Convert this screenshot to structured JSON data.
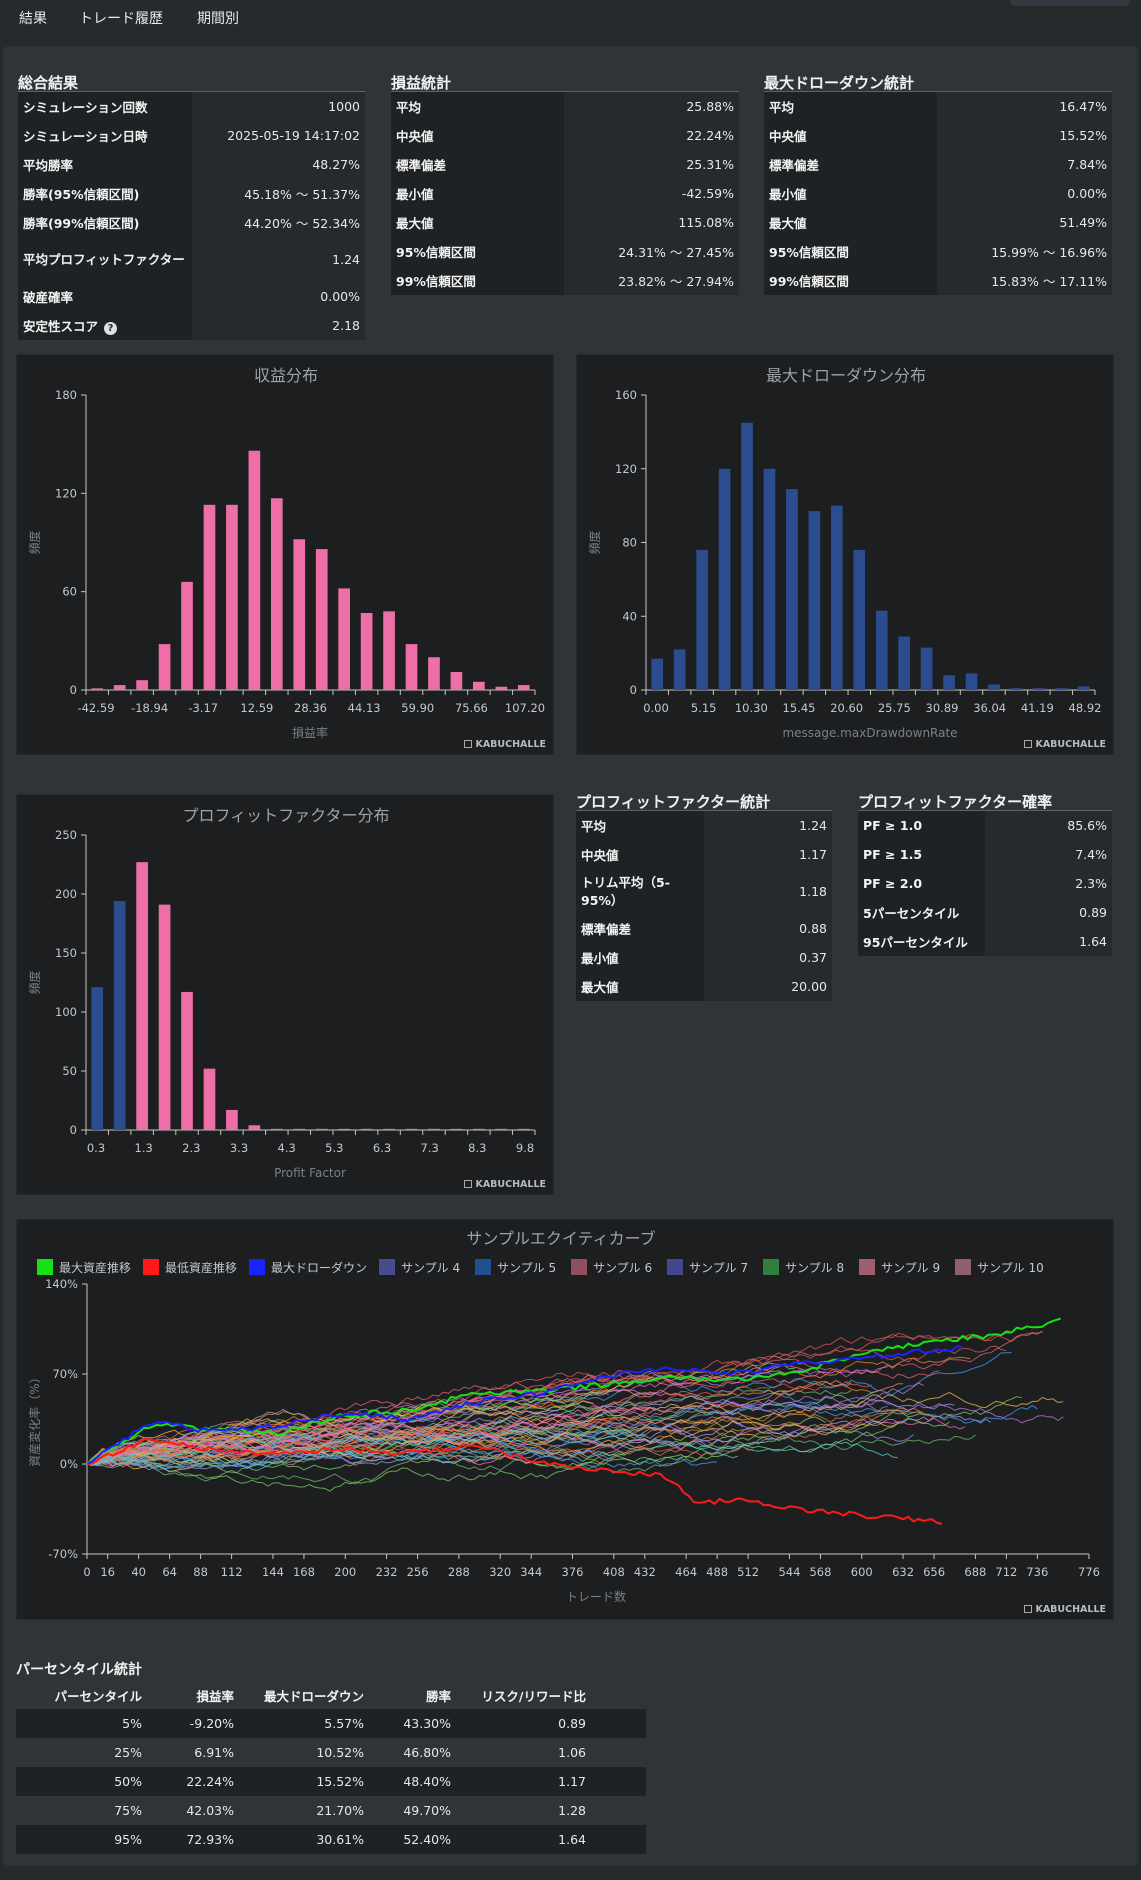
{
  "tabs": [
    "結果",
    "トレード履歴",
    "期間別"
  ],
  "summary": {
    "title": "総合結果",
    "rows": [
      {
        "k": "シミュレーション回数",
        "v": "1000"
      },
      {
        "k": "シミュレーション日時",
        "v": "2025-05-19 14:17:02"
      },
      {
        "k": "平均勝率",
        "v": "48.27%"
      },
      {
        "k": "勝率(95%信頼区間)",
        "v": "45.18% 〜 51.37%"
      },
      {
        "k": "勝率(99%信頼区間)",
        "v": "44.20% 〜 52.34%"
      },
      {
        "k": "平均プロフィットファクター",
        "v": "1.24"
      },
      {
        "k": "破産確率",
        "v": "0.00%"
      },
      {
        "k": "安定性スコア",
        "v": "2.18"
      }
    ]
  },
  "pl_stats": {
    "title": "損益統計",
    "rows": [
      {
        "k": "平均",
        "v": "25.88%"
      },
      {
        "k": "中央値",
        "v": "22.24%"
      },
      {
        "k": "標準偏差",
        "v": "25.31%"
      },
      {
        "k": "最小値",
        "v": "-42.59%"
      },
      {
        "k": "最大値",
        "v": "115.08%"
      },
      {
        "k": "95%信頼区間",
        "v": "24.31% 〜 27.45%"
      },
      {
        "k": "99%信頼区間",
        "v": "23.82% 〜 27.94%"
      }
    ]
  },
  "dd_stats": {
    "title": "最大ドローダウン統計",
    "rows": [
      {
        "k": "平均",
        "v": "16.47%"
      },
      {
        "k": "中央値",
        "v": "15.52%"
      },
      {
        "k": "標準偏差",
        "v": "7.84%"
      },
      {
        "k": "最小値",
        "v": "0.00%"
      },
      {
        "k": "最大値",
        "v": "51.49%"
      },
      {
        "k": "95%信頼区間",
        "v": "15.99% 〜 16.96%"
      },
      {
        "k": "99%信頼区間",
        "v": "15.83% 〜 17.11%"
      }
    ]
  },
  "pf_stats": {
    "title": "プロフィットファクター統計",
    "rows": [
      {
        "k": "平均",
        "v": "1.24"
      },
      {
        "k": "中央値",
        "v": "1.17"
      },
      {
        "k": "トリム平均（5-95%）",
        "v": "1.18"
      },
      {
        "k": "標準偏差",
        "v": "0.88"
      },
      {
        "k": "最小値",
        "v": "0.37"
      },
      {
        "k": "最大値",
        "v": "20.00"
      }
    ]
  },
  "pf_prob": {
    "title": "プロフィットファクター確率",
    "rows": [
      {
        "k": "PF ≥ 1.0",
        "v": "85.6%"
      },
      {
        "k": "PF ≥ 1.5",
        "v": "7.4%"
      },
      {
        "k": "PF ≥ 2.0",
        "v": "2.3%"
      },
      {
        "k": "5パーセンタイル",
        "v": "0.89"
      },
      {
        "k": "95パーセンタイル",
        "v": "1.64"
      }
    ]
  },
  "brand": "KABUCHALLE",
  "percentile": {
    "title": "パーセンタイル統計",
    "headers": [
      "パーセンタイル",
      "損益率",
      "最大ドローダウン",
      "勝率",
      "リスク/リワード比"
    ],
    "rows": [
      [
        "5%",
        "-9.20%",
        "5.57%",
        "43.30%",
        "0.89"
      ],
      [
        "25%",
        "6.91%",
        "10.52%",
        "46.80%",
        "1.06"
      ],
      [
        "50%",
        "22.24%",
        "15.52%",
        "48.40%",
        "1.17"
      ],
      [
        "75%",
        "42.03%",
        "21.70%",
        "49.70%",
        "1.28"
      ],
      [
        "95%",
        "72.93%",
        "30.61%",
        "52.40%",
        "1.64"
      ]
    ]
  },
  "chart_data": [
    {
      "type": "bar",
      "title": "収益分布",
      "xlabel": "損益率",
      "ylabel": "頻度",
      "ylim": [
        0,
        180
      ],
      "yticks": [
        0,
        60,
        120,
        180
      ],
      "xtick_labels": [
        "-42.59",
        "-18.94",
        "-3.17",
        "12.59",
        "28.36",
        "44.13",
        "59.90",
        "75.66",
        "107.20"
      ],
      "values": [
        1,
        3,
        6,
        28,
        66,
        113,
        113,
        146,
        117,
        92,
        86,
        62,
        47,
        48,
        28,
        20,
        11,
        5,
        2,
        3
      ],
      "color": "#ee6fa8"
    },
    {
      "type": "bar",
      "title": "最大ドローダウン分布",
      "xlabel": "message.maxDrawdownRate",
      "ylabel": "頻度",
      "ylim": [
        0,
        160
      ],
      "yticks": [
        0,
        40,
        80,
        120,
        160
      ],
      "xtick_labels": [
        "0.00",
        "5.15",
        "10.30",
        "15.45",
        "20.60",
        "25.75",
        "30.89",
        "36.04",
        "41.19",
        "48.92"
      ],
      "values": [
        17,
        22,
        76,
        120,
        145,
        120,
        109,
        97,
        100,
        76,
        43,
        29,
        23,
        8,
        9,
        3,
        1,
        1,
        1,
        2
      ],
      "color": "#2b4d8f"
    },
    {
      "type": "bar",
      "title": "プロフィットファクター分布",
      "xlabel": "Profit Factor",
      "ylabel": "頻度",
      "ylim": [
        0,
        250
      ],
      "yticks": [
        0,
        50,
        100,
        150,
        200,
        250
      ],
      "xtick_labels": [
        "0.3",
        "1.3",
        "2.3",
        "3.3",
        "4.3",
        "5.3",
        "6.3",
        "7.3",
        "8.3",
        "9.8"
      ],
      "values": [
        121,
        194,
        227,
        191,
        117,
        52,
        17,
        4,
        1,
        1,
        1,
        1,
        1,
        1,
        1,
        1,
        1,
        1,
        1,
        1
      ],
      "colors": [
        "#2b4d8f",
        "#2b4d8f",
        "#ee6fa8",
        "#ee6fa8",
        "#ee6fa8",
        "#ee6fa8",
        "#ee6fa8",
        "#ee6fa8",
        "#ee6fa8",
        "#ee6fa8",
        "#ee6fa8",
        "#ee6fa8",
        "#ee6fa8",
        "#ee6fa8",
        "#ee6fa8",
        "#ee6fa8",
        "#ee6fa8",
        "#ee6fa8",
        "#ee6fa8",
        "#ee6fa8"
      ]
    },
    {
      "type": "line",
      "title": "サンプルエクイティカーブ",
      "xlabel": "トレード数",
      "ylabel": "資産変化率（%）",
      "xlim": [
        0,
        776
      ],
      "ylim": [
        -70,
        140
      ],
      "yticks": [
        -70,
        0,
        70,
        140
      ],
      "ytick_suffix": "%",
      "xticks": [
        0,
        16,
        40,
        64,
        88,
        112,
        144,
        168,
        200,
        232,
        256,
        288,
        320,
        344,
        376,
        408,
        432,
        464,
        488,
        512,
        544,
        568,
        600,
        632,
        656,
        688,
        712,
        736,
        776
      ],
      "series": [
        {
          "name": "最大資産推移",
          "color": "#16e016",
          "x": [
            0,
            50,
            100,
            150,
            200,
            250,
            300,
            350,
            400,
            450,
            500,
            550,
            600,
            650,
            700,
            750,
            757
          ],
          "y": [
            0,
            30,
            27,
            24,
            38,
            42,
            55,
            56,
            62,
            67,
            65,
            72,
            85,
            95,
            100,
            110,
            114
          ]
        },
        {
          "name": "最低資産推移",
          "color": "#ff1a1a",
          "x": [
            0,
            50,
            100,
            150,
            200,
            250,
            300,
            350,
            400,
            450,
            470,
            500,
            550,
            600,
            650,
            662
          ],
          "y": [
            0,
            20,
            10,
            8,
            12,
            8,
            15,
            2,
            -5,
            -10,
            -30,
            -28,
            -35,
            -40,
            -44,
            -45
          ]
        },
        {
          "name": "最大ドローダウン",
          "color": "#1a22ff",
          "x": [
            0,
            50,
            100,
            150,
            200,
            250,
            300,
            350,
            400,
            450,
            500,
            550,
            600,
            650,
            680
          ],
          "y": [
            0,
            33,
            25,
            30,
            40,
            35,
            48,
            55,
            68,
            75,
            70,
            78,
            82,
            88,
            90
          ]
        },
        {
          "name": "サンプル 4",
          "color": "#4a4a8f"
        },
        {
          "name": "サンプル 5",
          "color": "#1f4f8f"
        },
        {
          "name": "サンプル 6",
          "color": "#8f4f5f"
        },
        {
          "name": "サンプル 7",
          "color": "#46468f"
        },
        {
          "name": "サンプル 8",
          "color": "#2f7f3f"
        },
        {
          "name": "サンプル 9",
          "color": "#9f5f6f"
        },
        {
          "name": "サンプル 10",
          "color": "#8f5f6f"
        }
      ]
    }
  ]
}
